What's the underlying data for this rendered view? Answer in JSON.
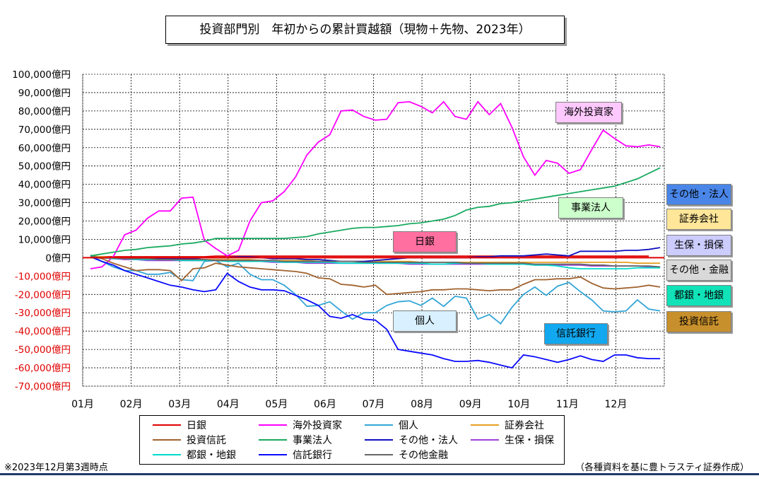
{
  "title": "投資部門別　年初からの累計買越額（現物＋先物、2023年）",
  "footnote": "※2023年12月第3週時点",
  "source": "（各種資料を基に豊トラスティ証券作成）",
  "chart_data": {
    "type": "line",
    "title": "投資部門別　年初からの累計買越額（現物＋先物、2023年）",
    "xlabel": "",
    "ylabel": "",
    "unit": "億円",
    "ylim": [
      -70000,
      100000
    ],
    "yticks": [
      "100,000億円",
      "90,000億円",
      "80,000億円",
      "70,000億円",
      "60,000億円",
      "50,000億円",
      "40,000億円",
      "30,000億円",
      "20,000億円",
      "10,000億円",
      "0億円",
      "-10,000億円",
      "-20,000億円",
      "-30,000億円",
      "-40,000億円",
      "-50,000億円",
      "-60,000億円",
      "-70,000億円"
    ],
    "xticks": [
      "01月",
      "02月",
      "03月",
      "04月",
      "05月",
      "06月",
      "07月",
      "08月",
      "09月",
      "10月",
      "11月",
      "12月"
    ],
    "grid": true,
    "legend_position": "bottom",
    "x_unit": "week of 2023",
    "series": [
      {
        "name": "日銀",
        "color": "#e00000",
        "values": [
          500,
          500,
          500,
          500,
          500,
          500,
          500,
          500,
          500,
          500,
          500,
          800,
          800,
          800,
          800,
          800,
          800,
          800,
          800,
          800,
          800,
          800,
          800,
          800,
          800,
          800,
          800,
          800,
          800,
          800,
          800,
          800,
          800,
          800,
          800,
          800,
          800,
          800,
          800,
          800,
          800,
          800,
          800,
          800,
          800,
          800,
          800,
          800,
          800,
          800
        ]
      },
      {
        "name": "海外投資家",
        "color": "#ff00ff",
        "values": [
          -6000,
          -5000,
          500,
          12500,
          15000,
          21500,
          25500,
          25500,
          32500,
          33000,
          9500,
          5000,
          1000,
          4000,
          20000,
          30000,
          31000,
          36000,
          44000,
          56000,
          63000,
          67000,
          80000,
          80500,
          77000,
          75000,
          75500,
          84500,
          85000,
          82500,
          79000,
          85000,
          77000,
          75500,
          85000,
          78000,
          84000,
          71000,
          55000,
          45000,
          53000,
          51500,
          46000,
          48000,
          59000,
          69500,
          65000,
          61000,
          60500,
          61500,
          60500
        ]
      },
      {
        "name": "個人",
        "color": "#33a6d6",
        "values": [
          1500,
          -2000,
          -5000,
          -7000,
          -7000,
          -9000,
          -9000,
          -8000,
          -12000,
          -12500,
          -2000,
          -1500,
          -5000,
          -3000,
          -9000,
          -12000,
          -12000,
          -15000,
          -20000,
          -26500,
          -26000,
          -24000,
          -29000,
          -33500,
          -30000,
          -30000,
          -26000,
          -24000,
          -23500,
          -26000,
          -22000,
          -26500,
          -21000,
          -22000,
          -33500,
          -31000,
          -36000,
          -27000,
          -20000,
          -16000,
          -20500,
          -15500,
          -13500,
          -18500,
          -23000,
          -29000,
          -29500,
          -29000,
          -23000,
          -28000,
          -29000
        ]
      },
      {
        "name": "証券会社",
        "color": "#e6a020",
        "values": [
          1000,
          500,
          0,
          -500,
          -500,
          -1000,
          -1000,
          -1000,
          -1000,
          -1000,
          -1000,
          -1000,
          -1000,
          -1000,
          -1000,
          -1500,
          -1500,
          -1500,
          -1500,
          -1500,
          -2000,
          -2000,
          -2000,
          -2000,
          -2000,
          -2000,
          -2000,
          -2000,
          -2000,
          -2500,
          -2500,
          -2500,
          -2500,
          -2500,
          -2500,
          -2500,
          -2500,
          -2500,
          -2500,
          -2500,
          -2500,
          -2500,
          -2500,
          -2500,
          -2500,
          -2500,
          -2500,
          -2500,
          -3000,
          -3000,
          -3000
        ]
      },
      {
        "name": "投資信託",
        "color": "#a0622d",
        "values": [
          1000,
          -500,
          -3000,
          -5000,
          -7000,
          -6500,
          -6500,
          -7000,
          -12500,
          -6000,
          -5500,
          -3000,
          -4000,
          -5000,
          -5500,
          -6000,
          -6500,
          -7000,
          -7500,
          -8500,
          -11000,
          -11500,
          -14500,
          -15000,
          -16000,
          -15000,
          -20000,
          -19500,
          -19000,
          -18500,
          -17500,
          -17500,
          -17000,
          -17000,
          -17500,
          -18000,
          -17500,
          -17500,
          -14500,
          -12000,
          -12000,
          -11500,
          -11500,
          -10500,
          -14000,
          -16500,
          -17000,
          -16500,
          -16000,
          -15000,
          -16000
        ]
      },
      {
        "name": "事業法人",
        "color": "#1aaa60",
        "values": [
          1000,
          2000,
          3000,
          4000,
          4500,
          5500,
          6000,
          6500,
          7500,
          8000,
          9000,
          10500,
          10500,
          10500,
          10500,
          10500,
          10500,
          10500,
          11000,
          11500,
          13000,
          14000,
          15000,
          16000,
          16500,
          16500,
          17000,
          17500,
          18500,
          19000,
          20000,
          21000,
          23000,
          26000,
          27500,
          28000,
          29500,
          30000,
          31000,
          32000,
          33000,
          34000,
          35000,
          36000,
          37000,
          38000,
          39000,
          41000,
          43000,
          46000,
          49000
        ]
      },
      {
        "name": "その他・法人",
        "color": "#1010c0",
        "values": [
          500,
          0,
          -500,
          -500,
          -500,
          -500,
          -500,
          -500,
          -500,
          -500,
          0,
          0,
          0,
          500,
          500,
          0,
          -500,
          -500,
          -500,
          -1000,
          -1000,
          -1500,
          -2000,
          -2000,
          -2000,
          -1500,
          -1000,
          -500,
          0,
          0,
          0,
          0,
          0,
          0,
          500,
          500,
          1000,
          1000,
          1000,
          1500,
          2000,
          1500,
          1000,
          3500,
          3500,
          3500,
          3500,
          4000,
          4000,
          4500,
          5500
        ]
      },
      {
        "name": "生保・損保",
        "color": "#9c40d8",
        "values": [
          500,
          0,
          -500,
          -1000,
          -1000,
          -1500,
          -1500,
          -1500,
          -1500,
          -1500,
          -1500,
          -1500,
          -1500,
          -2000,
          -2000,
          -2000,
          -2500,
          -2500,
          -2500,
          -3000,
          -3000,
          -3000,
          -3000,
          -3000,
          -3000,
          -3000,
          -3000,
          -3000,
          -3500,
          -3500,
          -3500,
          -3500,
          -3500,
          -3500,
          -3500,
          -3500,
          -3500,
          -3500,
          -3500,
          -4000,
          -4000,
          -4000,
          -4000,
          -4000,
          -4500,
          -4500,
          -4500,
          -4500,
          -4500,
          -5000,
          -5000
        ]
      },
      {
        "name": "都銀・地銀",
        "color": "#00dccc",
        "values": [
          500,
          0,
          -500,
          -500,
          -1000,
          -1000,
          -1000,
          -1000,
          -1500,
          -1500,
          -1500,
          -1500,
          -2000,
          -2000,
          -2000,
          -2000,
          -2000,
          -2500,
          -2500,
          -2500,
          -2500,
          -2500,
          -3000,
          -3000,
          -3000,
          -3000,
          -3000,
          -3000,
          -3000,
          -3000,
          -3500,
          -3500,
          -3000,
          -3000,
          -3000,
          -3500,
          -3500,
          -3500,
          -3500,
          -4000,
          -4000,
          -4500,
          -5500,
          -6000,
          -6000,
          -6000,
          -6000,
          -6000,
          -5500,
          -5500,
          -5500
        ]
      },
      {
        "name": "信託銀行",
        "color": "#0a0aff",
        "values": [
          500,
          -2000,
          -4000,
          -7000,
          -9000,
          -11000,
          -13000,
          -15000,
          -16000,
          -17500,
          -18500,
          -17500,
          -8500,
          -13000,
          -16000,
          -17500,
          -17500,
          -18000,
          -20500,
          -23000,
          -26000,
          -32000,
          -33000,
          -31000,
          -33500,
          -34000,
          -39000,
          -50000,
          -51000,
          -52000,
          -53000,
          -55000,
          -56500,
          -56500,
          -56000,
          -57000,
          -58500,
          -60000,
          -53000,
          -54000,
          -55500,
          -57000,
          -55500,
          -53500,
          -55500,
          -56500,
          -53000,
          -53000,
          -54500,
          -55000,
          -55000
        ]
      },
      {
        "name": "その他金融",
        "color": "#666666",
        "values": [
          500,
          0,
          0,
          -500,
          -500,
          -500,
          -1000,
          -1000,
          -1000,
          -1000,
          -1000,
          -1500,
          -1500,
          -1500,
          -1500,
          -1500,
          -1500,
          -2000,
          -2000,
          -2000,
          -2000,
          -2000,
          -2000,
          -2000,
          -2500,
          -2500,
          -2500,
          -2500,
          -2500,
          -2500,
          -2500,
          -2500,
          -2500,
          -3000,
          -3000,
          -3000,
          -3000,
          -3000,
          -3000,
          -3500,
          -3500,
          -3500,
          -3500,
          -3500,
          -4000,
          -4000,
          -4500,
          -4500,
          -4500,
          -4500,
          -5000
        ]
      }
    ],
    "annotations": [
      {
        "text": "海外投資家",
        "bg": "#ffc8ff"
      },
      {
        "text": "事業法人",
        "bg": "#ccffcc"
      },
      {
        "text": "日銀",
        "bg": "#ff6fa0"
      },
      {
        "text": "個人",
        "bg": "#d8f0ff"
      },
      {
        "text": "信託銀行",
        "bg": "#12a8ef"
      },
      {
        "text": "その他・法人",
        "bg": "#4a86e8"
      },
      {
        "text": "証券会社",
        "bg": "#ffe699"
      },
      {
        "text": "生保・損保",
        "bg": "#ccccff"
      },
      {
        "text": "その他・金融",
        "bg": "#d9d9d9"
      },
      {
        "text": "都銀・地銀",
        "bg": "#11e2b8"
      },
      {
        "text": "投資信託",
        "bg": "#c8902c"
      }
    ]
  }
}
